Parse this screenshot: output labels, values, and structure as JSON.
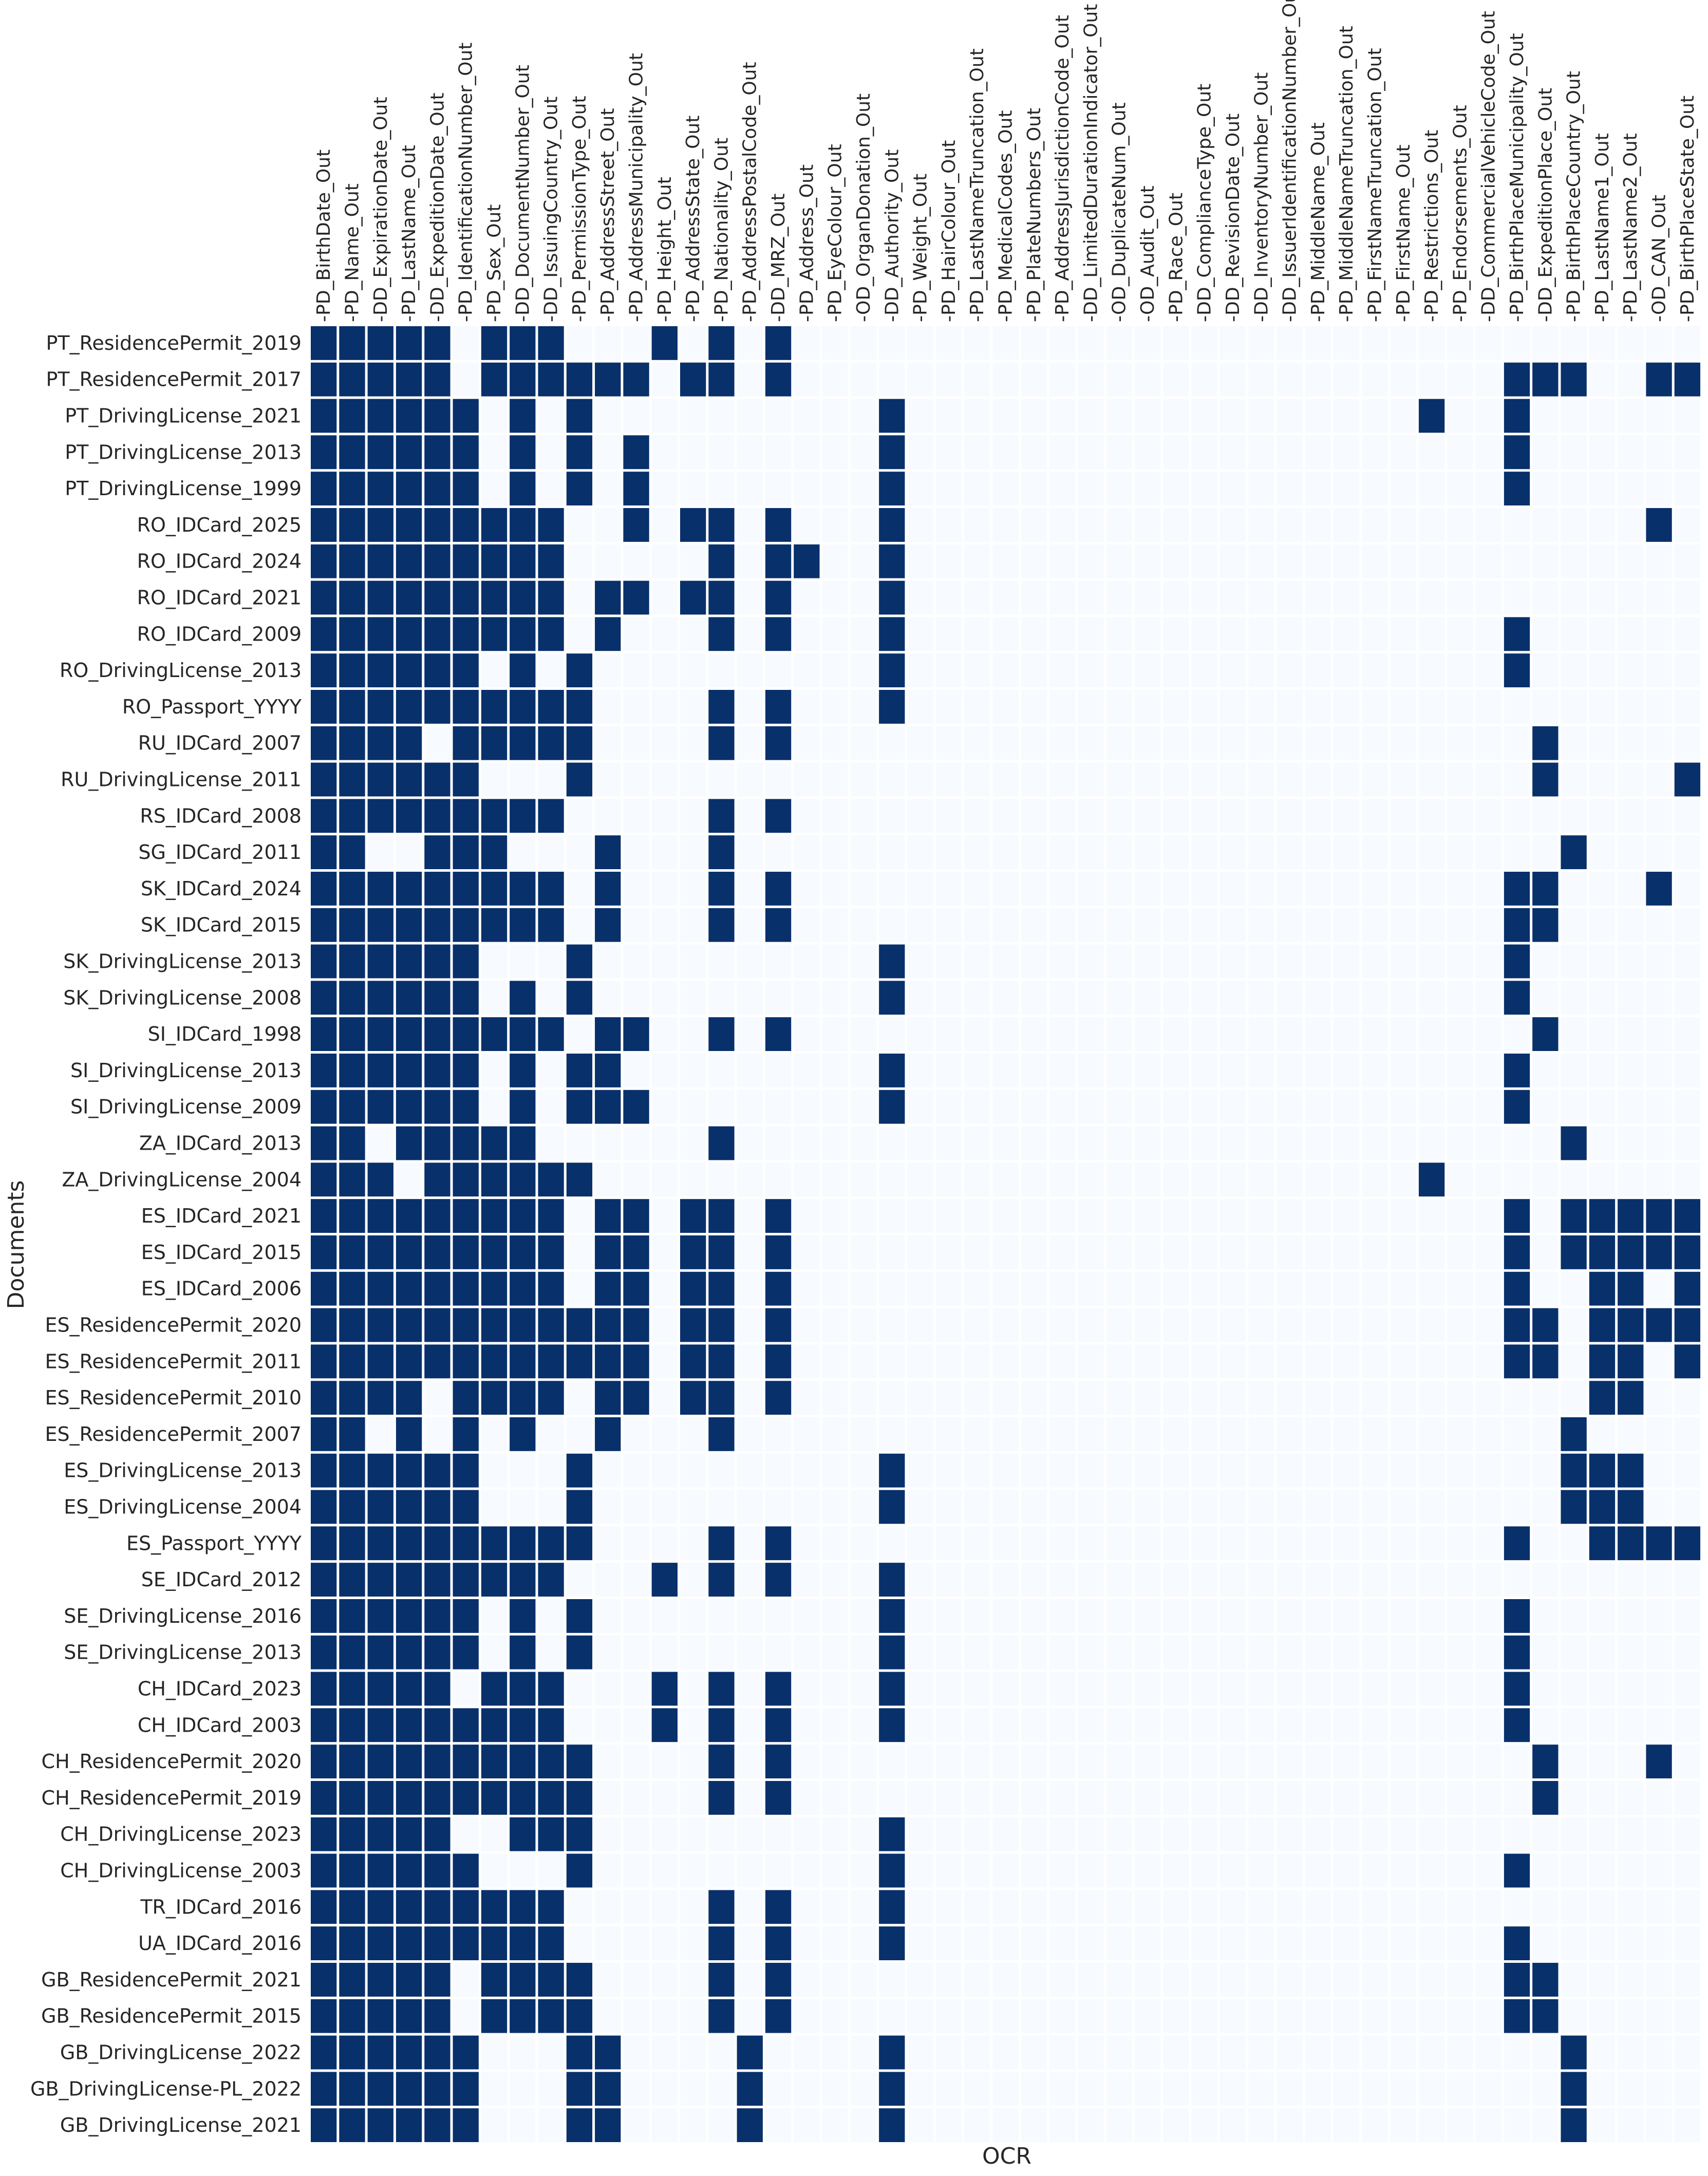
{
  "chart_data": {
    "type": "heatmap",
    "xlabel": "OCR",
    "ylabel": "Documents",
    "colors": {
      "on": "#08306b",
      "off": "#f7fbff",
      "grid": "#ffffff"
    },
    "x": [
      "PD_BirthDate_Out",
      "PD_Name_Out",
      "DD_ExpirationDate_Out",
      "PD_LastName_Out",
      "DD_ExpeditionDate_Out",
      "PD_IdentificationNumber_Out",
      "PD_Sex_Out",
      "DD_DocumentNumber_Out",
      "DD_IssuingCountry_Out",
      "PD_PermissionType_Out",
      "PD_AddressStreet_Out",
      "PD_AddressMunicipality_Out",
      "PD_Height_Out",
      "PD_AddressState_Out",
      "PD_Nationality_Out",
      "PD_AddressPostalCode_Out",
      "DD_MRZ_Out",
      "PD_Address_Out",
      "PD_EyeColour_Out",
      "OD_OrganDonation_Out",
      "DD_Authority_Out",
      "PD_Weight_Out",
      "PD_HairColour_Out",
      "PD_LastNameTruncation_Out",
      "PD_MedicalCodes_Out",
      "PD_PlateNumbers_Out",
      "PD_AddressJurisdictionCode_Out",
      "DD_LimitedDurationIndicator_Out",
      "OD_DuplicateNum_Out",
      "OD_Audit_Out",
      "PD_Race_Out",
      "DD_ComplianceType_Out",
      "DD_RevisionDate_Out",
      "DD_InventoryNumber_Out",
      "DD_IssuerIdentificationNumber_Out",
      "PD_MiddleName_Out",
      "PD_MiddleNameTruncation_Out",
      "PD_FirstNameTruncation_Out",
      "PD_FirstName_Out",
      "PD_Restrictions_Out",
      "PD_Endorsements_Out",
      "DD_CommercialVehicleCode_Out",
      "PD_BirthPlaceMunicipality_Out",
      "DD_ExpeditionPlace_Out",
      "PD_BirthPlaceCountry_Out",
      "PD_LastName1_Out",
      "PD_LastName2_Out",
      "OD_CAN_Out",
      "PD_BirthPlaceState_Out"
    ],
    "y": [
      "PT_ResidencePermit_2019",
      "PT_ResidencePermit_2017",
      "PT_DrivingLicense_2021",
      "PT_DrivingLicense_2013",
      "PT_DrivingLicense_1999",
      "RO_IDCard_2025",
      "RO_IDCard_2024",
      "RO_IDCard_2021",
      "RO_IDCard_2009",
      "RO_DrivingLicense_2013",
      "RO_Passport_YYYY",
      "RU_IDCard_2007",
      "RU_DrivingLicense_2011",
      "RS_IDCard_2008",
      "SG_IDCard_2011",
      "SK_IDCard_2024",
      "SK_IDCard_2015",
      "SK_DrivingLicense_2013",
      "SK_DrivingLicense_2008",
      "SI_IDCard_1998",
      "SI_DrivingLicense_2013",
      "SI_DrivingLicense_2009",
      "ZA_IDCard_2013",
      "ZA_DrivingLicense_2004",
      "ES_IDCard_2021",
      "ES_IDCard_2015",
      "ES_IDCard_2006",
      "ES_ResidencePermit_2020",
      "ES_ResidencePermit_2011",
      "ES_ResidencePermit_2010",
      "ES_ResidencePermit_2007",
      "ES_DrivingLicense_2013",
      "ES_DrivingLicense_2004",
      "ES_Passport_YYYY",
      "SE_IDCard_2012",
      "SE_DrivingLicense_2016",
      "SE_DrivingLicense_2013",
      "CH_IDCard_2023",
      "CH_IDCard_2003",
      "CH_ResidencePermit_2020",
      "CH_ResidencePermit_2019",
      "CH_DrivingLicense_2023",
      "CH_DrivingLicense_2003",
      "TR_IDCard_2016",
      "UA_IDCard_2016",
      "GB_ResidencePermit_2021",
      "GB_ResidencePermit_2015",
      "GB_DrivingLicense_2022",
      "GB_DrivingLicense-PL_2022",
      "GB_DrivingLicense_2021"
    ],
    "on_columns_by_row": [
      [
        0,
        1,
        2,
        3,
        4,
        6,
        7,
        8,
        12,
        14,
        16
      ],
      [
        0,
        1,
        2,
        3,
        4,
        6,
        7,
        8,
        9,
        10,
        11,
        13,
        14,
        16,
        42,
        43,
        44,
        47,
        48
      ],
      [
        0,
        1,
        2,
        3,
        4,
        5,
        7,
        9,
        20,
        39,
        42
      ],
      [
        0,
        1,
        2,
        3,
        4,
        5,
        7,
        9,
        11,
        20,
        42
      ],
      [
        0,
        1,
        2,
        3,
        4,
        5,
        7,
        9,
        11,
        20,
        42
      ],
      [
        0,
        1,
        2,
        3,
        4,
        5,
        6,
        7,
        8,
        11,
        13,
        14,
        16,
        20,
        47
      ],
      [
        0,
        1,
        2,
        3,
        4,
        5,
        6,
        7,
        8,
        14,
        16,
        17,
        20
      ],
      [
        0,
        1,
        2,
        3,
        4,
        5,
        6,
        7,
        8,
        10,
        11,
        13,
        14,
        16,
        20
      ],
      [
        0,
        1,
        2,
        3,
        4,
        5,
        6,
        7,
        8,
        10,
        14,
        16,
        20,
        42
      ],
      [
        0,
        1,
        2,
        3,
        4,
        5,
        7,
        9,
        20,
        42
      ],
      [
        0,
        1,
        2,
        3,
        4,
        5,
        6,
        7,
        8,
        9,
        14,
        16,
        20
      ],
      [
        0,
        1,
        2,
        3,
        5,
        6,
        7,
        8,
        9,
        14,
        16,
        43
      ],
      [
        0,
        1,
        2,
        3,
        4,
        5,
        9,
        43,
        48
      ],
      [
        0,
        1,
        2,
        3,
        4,
        5,
        6,
        7,
        8,
        14,
        16
      ],
      [
        0,
        1,
        4,
        5,
        6,
        10,
        14,
        44
      ],
      [
        0,
        1,
        2,
        3,
        4,
        5,
        6,
        7,
        8,
        10,
        14,
        16,
        42,
        43,
        47
      ],
      [
        0,
        1,
        2,
        3,
        4,
        5,
        6,
        7,
        8,
        10,
        14,
        16,
        42,
        43
      ],
      [
        0,
        1,
        2,
        3,
        4,
        5,
        9,
        20,
        42
      ],
      [
        0,
        1,
        2,
        3,
        4,
        5,
        7,
        9,
        20,
        42
      ],
      [
        0,
        1,
        2,
        3,
        4,
        5,
        6,
        7,
        8,
        10,
        11,
        14,
        16,
        43
      ],
      [
        0,
        1,
        2,
        3,
        4,
        5,
        7,
        9,
        10,
        20,
        42
      ],
      [
        0,
        1,
        2,
        3,
        4,
        5,
        7,
        9,
        10,
        11,
        20,
        42
      ],
      [
        0,
        1,
        3,
        4,
        5,
        6,
        7,
        14,
        44
      ],
      [
        0,
        1,
        2,
        4,
        5,
        6,
        7,
        8,
        9,
        39
      ],
      [
        0,
        1,
        2,
        3,
        4,
        5,
        6,
        7,
        8,
        10,
        11,
        13,
        14,
        16,
        42,
        44,
        45,
        46,
        47,
        48
      ],
      [
        0,
        1,
        2,
        3,
        4,
        5,
        6,
        7,
        8,
        10,
        11,
        13,
        14,
        16,
        42,
        44,
        45,
        46,
        47,
        48
      ],
      [
        0,
        1,
        2,
        3,
        4,
        5,
        6,
        7,
        8,
        10,
        11,
        13,
        14,
        16,
        42,
        45,
        46,
        48
      ],
      [
        0,
        1,
        2,
        3,
        4,
        5,
        6,
        7,
        8,
        9,
        10,
        11,
        13,
        14,
        16,
        42,
        43,
        45,
        46,
        47,
        48
      ],
      [
        0,
        1,
        2,
        3,
        4,
        5,
        6,
        7,
        8,
        9,
        10,
        11,
        13,
        14,
        16,
        42,
        43,
        45,
        46,
        48
      ],
      [
        0,
        1,
        2,
        3,
        5,
        6,
        7,
        8,
        10,
        11,
        13,
        14,
        16,
        45,
        46
      ],
      [
        0,
        1,
        3,
        5,
        7,
        10,
        14,
        44
      ],
      [
        0,
        1,
        2,
        3,
        4,
        5,
        9,
        20,
        44,
        45,
        46
      ],
      [
        0,
        1,
        2,
        3,
        4,
        5,
        9,
        20,
        44,
        45,
        46
      ],
      [
        0,
        1,
        2,
        3,
        4,
        5,
        6,
        7,
        8,
        9,
        14,
        16,
        42,
        45,
        46,
        47,
        48
      ],
      [
        0,
        1,
        2,
        3,
        4,
        5,
        6,
        7,
        8,
        12,
        14,
        16,
        20
      ],
      [
        0,
        1,
        2,
        3,
        4,
        5,
        7,
        9,
        20,
        42
      ],
      [
        0,
        1,
        2,
        3,
        4,
        5,
        7,
        9,
        20,
        42
      ],
      [
        0,
        1,
        2,
        3,
        4,
        6,
        7,
        8,
        12,
        14,
        16,
        20,
        42
      ],
      [
        0,
        1,
        2,
        3,
        4,
        5,
        6,
        7,
        8,
        12,
        14,
        16,
        20,
        42
      ],
      [
        0,
        1,
        2,
        3,
        4,
        5,
        6,
        7,
        8,
        9,
        14,
        16,
        43,
        47
      ],
      [
        0,
        1,
        2,
        3,
        4,
        5,
        6,
        7,
        8,
        9,
        14,
        16,
        43
      ],
      [
        0,
        1,
        2,
        3,
        4,
        7,
        8,
        9,
        20
      ],
      [
        0,
        1,
        2,
        3,
        4,
        5,
        9,
        20,
        42
      ],
      [
        0,
        1,
        2,
        3,
        4,
        5,
        6,
        7,
        8,
        14,
        16,
        20
      ],
      [
        0,
        1,
        2,
        3,
        4,
        5,
        6,
        7,
        8,
        14,
        16,
        20,
        42
      ],
      [
        0,
        1,
        2,
        3,
        4,
        6,
        7,
        8,
        9,
        14,
        16,
        42,
        43
      ],
      [
        0,
        1,
        2,
        3,
        4,
        6,
        7,
        8,
        9,
        14,
        16,
        42,
        43
      ],
      [
        0,
        1,
        2,
        3,
        4,
        5,
        9,
        10,
        15,
        20,
        44
      ],
      [
        0,
        1,
        2,
        3,
        4,
        5,
        9,
        10,
        15,
        20,
        44
      ],
      [
        0,
        1,
        2,
        3,
        4,
        5,
        9,
        10,
        15,
        20,
        44
      ]
    ]
  }
}
